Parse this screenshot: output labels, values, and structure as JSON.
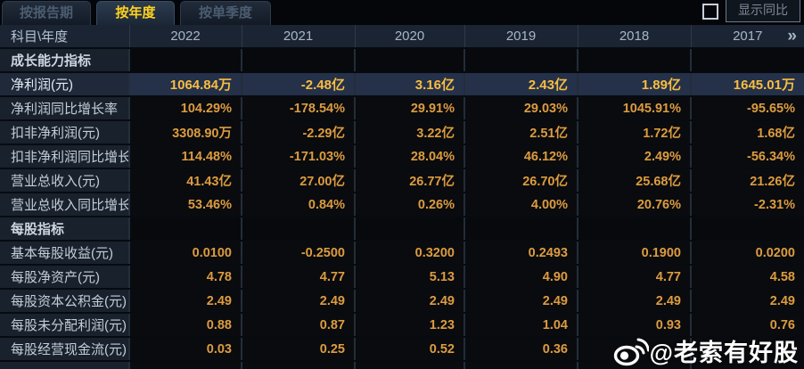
{
  "tabs": [
    {
      "label": "按报告期",
      "active": false
    },
    {
      "label": "按年度",
      "active": true
    },
    {
      "label": "按单季度",
      "active": false
    }
  ],
  "controls": {
    "show_yoy_label": "显示同比",
    "show_yoy_checked": false
  },
  "table": {
    "corner_label": "科目\\年度",
    "more_icon": "»",
    "columns": [
      "2022",
      "2021",
      "2020",
      "2019",
      "2018",
      "2017"
    ],
    "rows": [
      {
        "type": "section",
        "label": "成长能力指标",
        "values": [
          "",
          "",
          "",
          "",
          "",
          ""
        ]
      },
      {
        "type": "highlight",
        "label": "净利润(元)",
        "values": [
          "1064.84万",
          "-2.48亿",
          "3.16亿",
          "2.43亿",
          "1.89亿",
          "1645.01万"
        ]
      },
      {
        "type": "data",
        "label": "净利润同比增长率",
        "values": [
          "104.29%",
          "-178.54%",
          "29.91%",
          "29.03%",
          "1045.91%",
          "-95.65%"
        ]
      },
      {
        "type": "data",
        "label": "扣非净利润(元)",
        "values": [
          "3308.90万",
          "-2.29亿",
          "3.22亿",
          "2.51亿",
          "1.72亿",
          "1.68亿"
        ]
      },
      {
        "type": "data",
        "label": "扣非净利润同比增长率",
        "values": [
          "114.48%",
          "-171.03%",
          "28.04%",
          "46.12%",
          "2.49%",
          "-56.34%"
        ]
      },
      {
        "type": "data",
        "label": "营业总收入(元)",
        "values": [
          "41.43亿",
          "27.00亿",
          "26.77亿",
          "26.70亿",
          "25.68亿",
          "21.26亿"
        ]
      },
      {
        "type": "data",
        "label": "营业总收入同比增长率",
        "values": [
          "53.46%",
          "0.84%",
          "0.26%",
          "4.00%",
          "20.76%",
          "-2.31%"
        ]
      },
      {
        "type": "section",
        "label": "每股指标",
        "values": [
          "",
          "",
          "",
          "",
          "",
          ""
        ]
      },
      {
        "type": "data",
        "label": "基本每股收益(元)",
        "values": [
          "0.0100",
          "-0.2500",
          "0.3200",
          "0.2493",
          "0.1900",
          "0.0200"
        ]
      },
      {
        "type": "data",
        "label": "每股净资产(元)",
        "values": [
          "4.78",
          "4.77",
          "5.13",
          "4.90",
          "4.77",
          "4.58"
        ]
      },
      {
        "type": "data",
        "label": "每股资本公积金(元)",
        "values": [
          "2.49",
          "2.49",
          "2.49",
          "2.49",
          "2.49",
          "2.49"
        ]
      },
      {
        "type": "data",
        "label": "每股未分配利润(元)",
        "values": [
          "0.88",
          "0.87",
          "1.23",
          "1.04",
          "0.93",
          "0.76"
        ]
      },
      {
        "type": "data",
        "label": "每股经营现金流(元)",
        "values": [
          "0.03",
          "0.25",
          "0.52",
          "0.36",
          "",
          ""
        ]
      }
    ]
  },
  "watermark": {
    "icon": "weibo-icon",
    "text": "@老索有好股"
  },
  "colors": {
    "value_text": "#dc9c40",
    "highlight_value_text": "#f9bd42",
    "highlight_row_bg": "#243149",
    "active_tab_text": "#ffd21e",
    "label_column_bg": "#19212d",
    "header_row_bg": "#1b2433"
  }
}
